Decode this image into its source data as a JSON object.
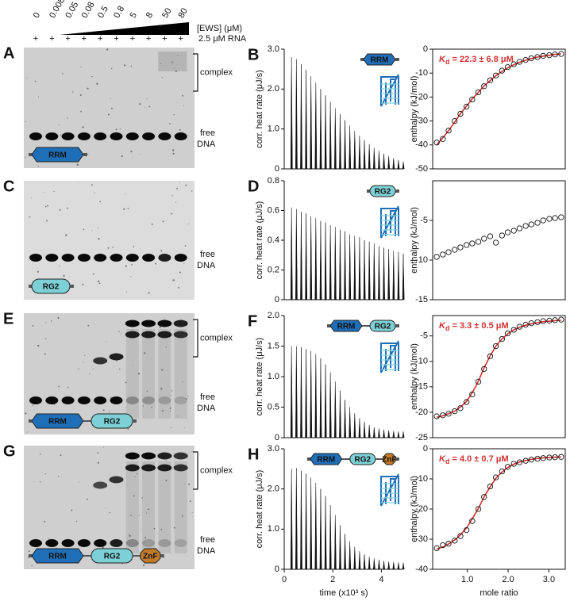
{
  "gel_header": {
    "concentrations": [
      "0",
      "0.008",
      "0.05",
      "0.08",
      "0.5",
      "0.8",
      "5",
      "8",
      "50",
      "80"
    ],
    "conc_label": "[EWS] (μM)",
    "plus": "+",
    "rna_label": "2.5 μM RNA"
  },
  "gels": [
    {
      "letter": "A",
      "complex": "complex",
      "free": [
        "free",
        "DNA"
      ],
      "domains": [
        "RRM"
      ]
    },
    {
      "letter": "C",
      "free": [
        "free",
        "DNA"
      ],
      "domains": [
        "RG2"
      ]
    },
    {
      "letter": "E",
      "complex": "complex",
      "free": [
        "free",
        "DNA"
      ],
      "domains": [
        "RRM",
        "RG2"
      ]
    },
    {
      "letter": "G",
      "complex": "complex",
      "free": [
        "free",
        "DNA"
      ],
      "domains": [
        "RRM",
        "RG2",
        "ZnF"
      ]
    }
  ],
  "chart_data": [
    {
      "type": "thermogram",
      "letter": "B",
      "domains": [
        "RRM"
      ],
      "y_label": "corr. heat rate (μJ/s)",
      "color": "#111111",
      "xlim": [
        0,
        4.9
      ],
      "ylim": [
        0,
        3
      ],
      "yticks": [
        0,
        {
          "value": 1,
          "label": "1.0"
        },
        {
          "value": 2,
          "label": "2.0"
        },
        {
          "value": 3,
          "label": "3.0"
        }
      ],
      "x": [
        0.3,
        0.5,
        0.7,
        0.9,
        1.1,
        1.3,
        1.5,
        1.7,
        1.9,
        2.1,
        2.3,
        2.5,
        2.7,
        2.9,
        3.1,
        3.3,
        3.5,
        3.7,
        3.9,
        4.1,
        4.3,
        4.5,
        4.7,
        4.9
      ],
      "values": [
        2.8,
        2.75,
        2.62,
        2.48,
        2.32,
        2.16,
        2.0,
        1.84,
        1.68,
        1.52,
        1.37,
        1.22,
        1.08,
        0.95,
        0.83,
        0.72,
        0.62,
        0.53,
        0.45,
        0.38,
        0.32,
        0.27,
        0.22,
        0.18
      ]
    },
    {
      "type": "isotherm",
      "y_label": "enthalpy (kJ/mol)",
      "kd_symbol": "K",
      "kd_sub": "d",
      "kd_value": " = 22.3 ± 6.8 μM",
      "color": "#111111",
      "fit_color": "#d32f2f",
      "xlim": [
        0.15,
        3.4
      ],
      "ylim": [
        -50,
        0
      ],
      "yticks": [
        0,
        -10,
        -20,
        -30,
        -40,
        -50
      ],
      "x": [
        0.25,
        0.4,
        0.54,
        0.69,
        0.83,
        0.98,
        1.12,
        1.27,
        1.41,
        1.56,
        1.7,
        1.85,
        1.99,
        2.14,
        2.28,
        2.43,
        2.57,
        2.72,
        2.86,
        3.01,
        3.15,
        3.3
      ],
      "values": [
        -39,
        -37.5,
        -34,
        -30,
        -27,
        -24,
        -21,
        -18,
        -15.5,
        -13,
        -11,
        -9,
        -7.5,
        -6.3,
        -5.3,
        -4.5,
        -3.8,
        -3.3,
        -2.8,
        -2.5,
        -2.2,
        -2
      ],
      "fit": [
        -40,
        -37,
        -34,
        -30.5,
        -27,
        -23.8,
        -20.8,
        -18,
        -15.4,
        -13.1,
        -11.1,
        -9.3,
        -7.8,
        -6.5,
        -5.5,
        -4.6,
        -3.9,
        -3.3,
        -2.9,
        -2.5,
        -2.2,
        -2
      ]
    },
    {
      "type": "thermogram",
      "letter": "D",
      "domains": [
        "RG2"
      ],
      "y_label": "corr. heat rate (μJ/s)",
      "color": "#111111",
      "xlim": [
        0,
        4.9
      ],
      "ylim": [
        0,
        0.8
      ],
      "yticks": [
        0,
        0.2,
        0.4,
        0.6,
        0.8
      ],
      "x": [
        0.3,
        0.5,
        0.7,
        0.9,
        1.1,
        1.3,
        1.5,
        1.7,
        1.9,
        2.1,
        2.3,
        2.5,
        2.7,
        2.9,
        3.1,
        3.3,
        3.5,
        3.7,
        3.9,
        4.1,
        4.3,
        4.5,
        4.7,
        4.9
      ],
      "values": [
        0.62,
        0.61,
        0.59,
        0.58,
        0.56,
        0.55,
        0.53,
        0.52,
        0.5,
        0.49,
        0.47,
        0.46,
        0.44,
        0.43,
        0.42,
        0.4,
        0.39,
        0.38,
        0.36,
        0.35,
        0.34,
        0.33,
        0.32,
        0.31
      ]
    },
    {
      "type": "isotherm",
      "y_label": "enthalpy (kJ/mol)",
      "color": "#111111",
      "xlim": [
        0.15,
        3.4
      ],
      "ylim": [
        -15,
        0
      ],
      "yticks": [
        -15,
        -10,
        -5
      ],
      "x": [
        0.25,
        0.4,
        0.54,
        0.69,
        0.83,
        0.98,
        1.12,
        1.27,
        1.41,
        1.56,
        1.7,
        1.85,
        1.99,
        2.14,
        2.28,
        2.43,
        2.57,
        2.72,
        2.86,
        3.01,
        3.15,
        3.3
      ],
      "values": [
        -9.6,
        -9.3,
        -9,
        -8.7,
        -8.4,
        -8.1,
        -7.9,
        -7.7,
        -7.3,
        -7.0,
        -7.8,
        -6.9,
        -6.5,
        -6.3,
        -6.0,
        -5.7,
        -5.5,
        -5.3,
        -5.0,
        -4.8,
        -4.7,
        -4.6
      ]
    },
    {
      "type": "thermogram",
      "letter": "F",
      "domains": [
        "RRM",
        "RG2"
      ],
      "y_label": "corr. heat rate (μJ/s)",
      "color": "#111111",
      "xlim": [
        0,
        4.9
      ],
      "ylim": [
        0,
        2
      ],
      "yticks": [
        0,
        0.5,
        {
          "value": 1,
          "label": "1.0"
        },
        1.5,
        {
          "value": 2,
          "label": "2.0"
        }
      ],
      "x": [
        0.3,
        0.5,
        0.7,
        0.9,
        1.1,
        1.3,
        1.5,
        1.7,
        1.9,
        2.1,
        2.3,
        2.5,
        2.7,
        2.9,
        3.1,
        3.3,
        3.5,
        3.7,
        3.9,
        4.1,
        4.3,
        4.5,
        4.7,
        4.9
      ],
      "values": [
        1.5,
        1.5,
        1.48,
        1.45,
        1.42,
        1.37,
        1.3,
        1.2,
        1.07,
        0.92,
        0.77,
        0.62,
        0.5,
        0.4,
        0.32,
        0.26,
        0.21,
        0.17,
        0.15,
        0.13,
        0.12,
        0.11,
        0.1,
        0.1
      ]
    },
    {
      "type": "isotherm",
      "y_label": "enthalpy (kJ/mol)",
      "kd_symbol": "K",
      "kd_sub": "d",
      "kd_value": " = 3.3 ± 0.5 μM",
      "color": "#111111",
      "fit_color": "#d32f2f",
      "xlim": [
        0.15,
        3.4
      ],
      "ylim": [
        -25,
        -1
      ],
      "yticks": [
        -25,
        -20,
        -15,
        -10,
        -5
      ],
      "x": [
        0.25,
        0.4,
        0.54,
        0.69,
        0.83,
        0.98,
        1.12,
        1.27,
        1.41,
        1.56,
        1.7,
        1.85,
        1.99,
        2.14,
        2.28,
        2.43,
        2.57,
        2.72,
        2.86,
        3.01,
        3.15,
        3.3
      ],
      "values": [
        -20.8,
        -20.6,
        -20.3,
        -19.8,
        -19.2,
        -18,
        -16.5,
        -14,
        -11.5,
        -9,
        -7,
        -5.6,
        -4.5,
        -3.8,
        -3.2,
        -2.8,
        -2.5,
        -2.3,
        -2.1,
        -2,
        -1.9,
        -1.8
      ],
      "fit": [
        -21,
        -20.7,
        -20.3,
        -19.8,
        -19,
        -17.9,
        -16.2,
        -13.9,
        -11.3,
        -8.9,
        -7,
        -5.6,
        -4.6,
        -3.8,
        -3.3,
        -2.9,
        -2.6,
        -2.4,
        -2.2,
        -2.1,
        -2,
        -1.9
      ]
    },
    {
      "type": "thermogram",
      "letter": "H",
      "domains": [
        "RRM",
        "RG2",
        "ZnF"
      ],
      "y_label": "corr. heat rate (μJ/s)",
      "x_label": "time (x10³ s)",
      "color": "#111111",
      "xlim": [
        0,
        4.9
      ],
      "ylim": [
        0,
        3
      ],
      "yticks": [
        0,
        {
          "value": 1,
          "label": "1.0"
        },
        {
          "value": 2,
          "label": "2.0"
        },
        {
          "value": 3,
          "label": "3.0"
        }
      ],
      "xticks": [
        0,
        2,
        4
      ],
      "x": [
        0.3,
        0.5,
        0.7,
        0.9,
        1.1,
        1.3,
        1.5,
        1.7,
        1.9,
        2.1,
        2.3,
        2.5,
        2.7,
        2.9,
        3.1,
        3.3,
        3.5,
        3.7,
        3.9,
        4.1,
        4.3,
        4.5,
        4.7,
        4.9
      ],
      "values": [
        2.5,
        2.52,
        2.45,
        2.38,
        2.28,
        2.15,
        2.0,
        1.82,
        1.6,
        1.35,
        1.1,
        0.88,
        0.7,
        0.56,
        0.45,
        0.37,
        0.31,
        0.27,
        0.24,
        0.21,
        0.19,
        0.18,
        0.17,
        0.16
      ]
    },
    {
      "type": "isotherm",
      "y_label": "enthalpy (kJ/mol)",
      "x_label": "mole ratio",
      "kd_symbol": "K",
      "kd_sub": "d",
      "kd_value": " = 4.0 ± 0.7 μM",
      "color": "#111111",
      "fit_color": "#d32f2f",
      "xlim": [
        0.15,
        3.4
      ],
      "ylim": [
        -40,
        0
      ],
      "yticks": [
        0,
        -10,
        -20,
        -30,
        -40
      ],
      "xticks": [
        {
          "value": 1,
          "label": "1.0"
        },
        {
          "value": 2,
          "label": "2.0"
        },
        {
          "value": 3,
          "label": "3.0"
        }
      ],
      "x": [
        0.25,
        0.4,
        0.54,
        0.69,
        0.83,
        0.98,
        1.12,
        1.27,
        1.41,
        1.56,
        1.7,
        1.85,
        1.99,
        2.14,
        2.28,
        2.43,
        2.57,
        2.72,
        2.86,
        3.01,
        3.15,
        3.3
      ],
      "values": [
        -33,
        -32,
        -31.5,
        -30.5,
        -29,
        -27,
        -24,
        -20,
        -16,
        -12.5,
        -9.5,
        -7.5,
        -6,
        -5,
        -4.5,
        -4,
        -3.6,
        -3.3,
        -3.1,
        -2.9,
        -2.8,
        -2.7
      ],
      "fit": [
        -33.3,
        -32.6,
        -31.6,
        -30.3,
        -28.6,
        -26.3,
        -23.3,
        -19.8,
        -16,
        -12.6,
        -9.8,
        -7.7,
        -6.2,
        -5.1,
        -4.4,
        -3.9,
        -3.5,
        -3.2,
        -3,
        -2.9,
        -2.8,
        -2.7
      ]
    }
  ]
}
